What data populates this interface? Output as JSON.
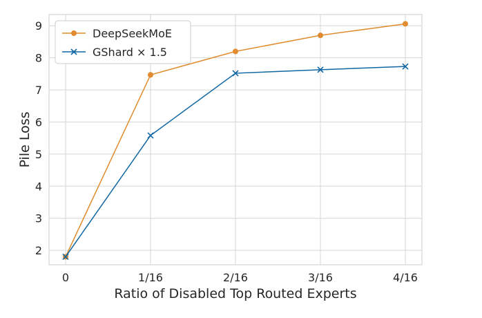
{
  "chart_data": {
    "type": "line",
    "title": "",
    "xlabel": "Ratio of Disabled Top Routed Experts",
    "ylabel": "Pile Loss",
    "categories": [
      "0",
      "1/16",
      "2/16",
      "3/16",
      "4/16"
    ],
    "x": [
      0,
      1,
      2,
      3,
      4
    ],
    "ylim": [
      1.55,
      9.35
    ],
    "yticks": [
      2,
      3,
      4,
      5,
      6,
      7,
      8,
      9
    ],
    "grid": true,
    "legend_position": "top-left",
    "series": [
      {
        "name": "DeepSeekMoE",
        "values": [
          1.8,
          7.47,
          8.2,
          8.7,
          9.06
        ],
        "color": "#e08c2e",
        "marker": "circle"
      },
      {
        "name": "GShard × 1.5",
        "values": [
          1.8,
          5.58,
          7.52,
          7.63,
          7.73
        ],
        "color": "#0f67a3",
        "marker": "x"
      }
    ]
  }
}
